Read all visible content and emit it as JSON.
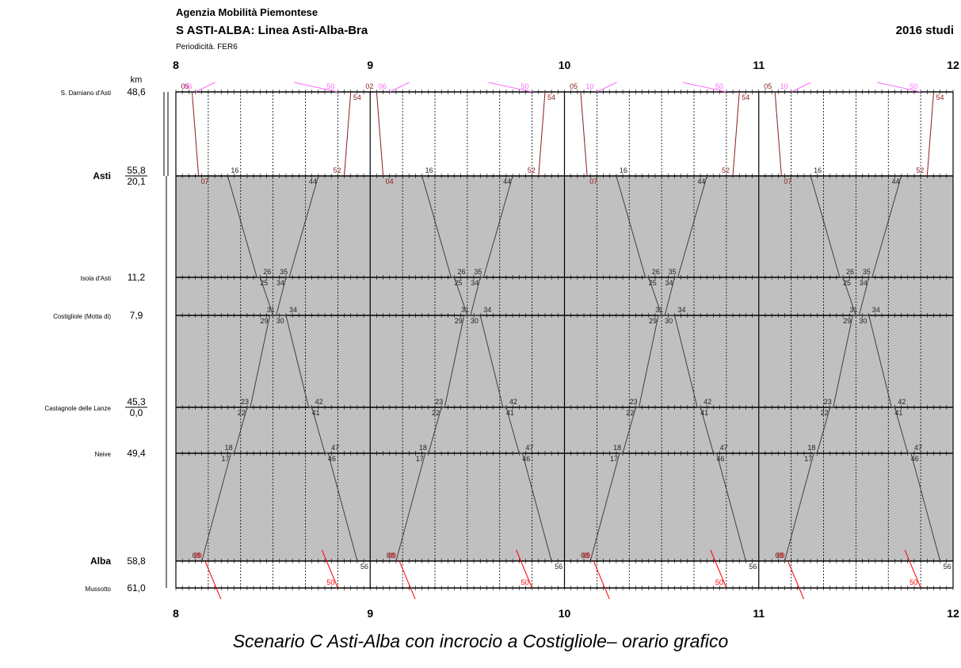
{
  "header": {
    "agency": "Agenzia Mobilità Piemontese",
    "line_title": "S ASTI-ALBA: Linea Asti-Alba-Bra",
    "periodicity": "Periodicità. FER6",
    "year_label": "2016 studi"
  },
  "caption": "Scenario C Asti-Alba con incrocio a Costigliole– orario grafico",
  "chart_data": {
    "type": "line",
    "title": "S ASTI-ALBA: Linea Asti-Alba-Bra",
    "x_axis": {
      "unit": "hour",
      "range": [
        8,
        12
      ],
      "tick_labels": [
        "8",
        "9",
        "10",
        "11",
        "12"
      ],
      "minor_step_minutes": 10
    },
    "y_axis": {
      "label": "km"
    },
    "grid": true,
    "stations": [
      {
        "name": "S. Damiano d'Asti",
        "km": [
          "48,6"
        ],
        "bold": false
      },
      {
        "name": "Asti",
        "km": [
          "55,8",
          "20,1"
        ],
        "bold": true
      },
      {
        "name": "Isola d'Asti",
        "km": [
          "11,2"
        ],
        "bold": false
      },
      {
        "name": "Costigliole (Motta di)",
        "km": [
          "7,9"
        ],
        "bold": false
      },
      {
        "name": "Castagnole delle Lanze",
        "km": [
          "45,3",
          "0,0"
        ],
        "bold": false
      },
      {
        "name": "Neive",
        "km": [
          "49,4"
        ],
        "bold": false
      },
      {
        "name": "Alba",
        "km": [
          "58,8"
        ],
        "bold": true
      },
      {
        "name": "Mussotto",
        "km": [
          "61,0"
        ],
        "bold": false
      }
    ],
    "series": [
      {
        "color": "#404040",
        "repeat_hours": [
          0,
          1,
          2,
          3
        ],
        "points": [
          {
            "station": 6,
            "time": "8:08",
            "label": "08"
          },
          {
            "station": 5,
            "time": "8:17",
            "label": "17"
          },
          {
            "station": 5,
            "time": "8:18",
            "label": "18"
          },
          {
            "station": 4,
            "time": "8:22",
            "label": "22"
          },
          {
            "station": 4,
            "time": "8:23",
            "label": "23"
          },
          {
            "station": 3,
            "time": "8:29",
            "label": "29"
          },
          {
            "station": 3,
            "time": "8:31",
            "label": "31"
          },
          {
            "station": 2,
            "time": "8:34",
            "label": "34"
          },
          {
            "station": 2,
            "time": "8:35",
            "label": "35"
          },
          {
            "station": 1,
            "time": "8:44",
            "label": "44"
          }
        ]
      },
      {
        "color": "#404040",
        "repeat_hours": [
          0,
          1,
          2,
          3
        ],
        "points": [
          {
            "station": 1,
            "time": "8:16",
            "label": "16"
          },
          {
            "station": 2,
            "time": "8:25",
            "label": "25"
          },
          {
            "station": 2,
            "time": "8:26",
            "label": "26"
          },
          {
            "station": 3,
            "time": "8:30",
            "label": "30"
          },
          {
            "station": 3,
            "time": "8:34",
            "label": "34"
          },
          {
            "station": 4,
            "time": "8:41",
            "label": "41"
          },
          {
            "station": 4,
            "time": "8:42",
            "label": "42"
          },
          {
            "station": 5,
            "time": "8:46",
            "label": "46"
          },
          {
            "station": 5,
            "time": "8:47",
            "label": "47"
          },
          {
            "station": 6,
            "time": "8:56",
            "label": "56"
          }
        ]
      }
    ],
    "feeders": [
      {
        "color": "#8b1a1a",
        "from_station": 0,
        "to_station": 1,
        "departures": [
          "8:05",
          "9:02",
          "10:05",
          "11:05"
        ],
        "depart_labels": [
          "05",
          "02",
          "05",
          "05"
        ],
        "arrivals": [
          "8:07",
          "9:04",
          "10:07",
          "11:07"
        ],
        "arrival_labels": [
          "07",
          "04",
          "07",
          "07"
        ]
      },
      {
        "color": "#8b1a1a",
        "from_station": 1,
        "to_station": 0,
        "departures": [
          "8:52",
          "9:52",
          "10:52",
          "11:52"
        ],
        "depart_labels": [
          "52",
          "52",
          "52",
          "52"
        ],
        "arrivals": [
          "8:54",
          "9:54",
          "10:54",
          "11:54"
        ],
        "arrival_labels": [
          "54",
          "54",
          "54",
          "54"
        ]
      },
      {
        "color": "#ff66ff",
        "from_station": 0,
        "to_station": 1,
        "departures": [
          "8:06",
          "9:06",
          "10:10",
          "11:10"
        ],
        "depart_labels": [
          "06",
          "06",
          "10",
          "10"
        ]
      },
      {
        "color": "#ff66ff",
        "from_station": 0,
        "to_station": 1,
        "departures": [
          "8:50",
          "9:50",
          "10:50",
          "11:50"
        ],
        "depart_labels": [
          "50",
          "50",
          "50",
          "50"
        ]
      },
      {
        "color": "#ff0000",
        "from_station": 6,
        "to_station": 7,
        "departures": [
          "8:09",
          "9:09",
          "10:09",
          "11:09"
        ],
        "depart_labels": [
          "09",
          "09",
          "09",
          "09"
        ]
      },
      {
        "color": "#ff0000",
        "from_station": 7,
        "to_station": 6,
        "departures": [
          "8:50",
          "9:50",
          "10:50",
          "11:50"
        ],
        "depart_labels": [
          "50",
          "50",
          "50",
          "50"
        ]
      }
    ]
  }
}
